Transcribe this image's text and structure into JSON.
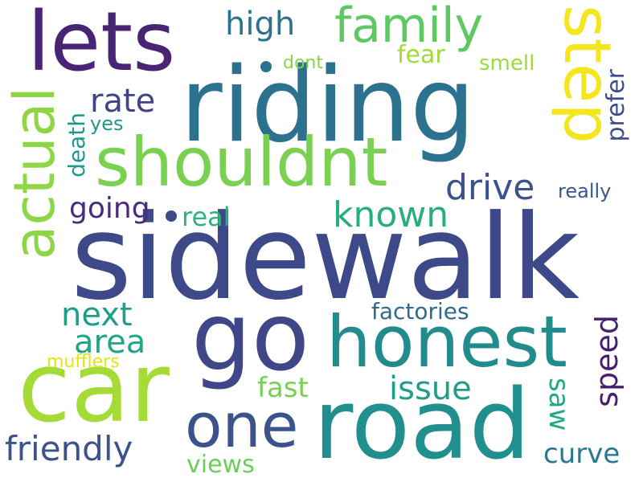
{
  "words": [
    {
      "id": "sidewalk",
      "text": "sidewalk",
      "color": "#3e4989"
    },
    {
      "id": "riding",
      "text": "riding",
      "color": "#2c728e"
    },
    {
      "id": "car",
      "text": "car",
      "color": "#a5db36"
    },
    {
      "id": "road",
      "text": "road",
      "color": "#218f8d"
    },
    {
      "id": "go",
      "text": "go",
      "color": "#3f4788"
    },
    {
      "id": "lets",
      "text": "lets",
      "color": "#482475"
    },
    {
      "id": "honest",
      "text": "honest",
      "color": "#228c8d"
    },
    {
      "id": "shouldnt",
      "text": "shouldnt",
      "color": "#7ad151"
    },
    {
      "id": "step",
      "text": "step",
      "color": "#f4e61e"
    },
    {
      "id": "actual",
      "text": "actual",
      "color": "#8ed645"
    },
    {
      "id": "one",
      "text": "one",
      "color": "#3b528b"
    },
    {
      "id": "family",
      "text": "family",
      "color": "#5ec962"
    },
    {
      "id": "drive",
      "text": "drive",
      "color": "#3b528b"
    },
    {
      "id": "known",
      "text": "known",
      "color": "#27ad81"
    },
    {
      "id": "friendly",
      "text": "friendly",
      "color": "#3b528b"
    },
    {
      "id": "issue",
      "text": "issue",
      "color": "#1f9e89"
    },
    {
      "id": "next",
      "text": "next",
      "color": "#1f9e89"
    },
    {
      "id": "area",
      "text": "area",
      "color": "#21a585"
    },
    {
      "id": "high",
      "text": "high",
      "color": "#2c728e"
    },
    {
      "id": "rate",
      "text": "rate",
      "color": "#414487"
    },
    {
      "id": "going",
      "text": "going",
      "color": "#472d7b"
    },
    {
      "id": "speed",
      "text": "speed",
      "color": "#481f70"
    },
    {
      "id": "curve",
      "text": "curve",
      "color": "#2a788e"
    },
    {
      "id": "fast",
      "text": "fast",
      "color": "#75d054"
    },
    {
      "id": "saw",
      "text": "saw",
      "color": "#22a884"
    },
    {
      "id": "real",
      "text": "real",
      "color": "#2db27d"
    },
    {
      "id": "fear",
      "text": "fear",
      "color": "#a2da37"
    },
    {
      "id": "smell",
      "text": "smell",
      "color": "#9dd93b"
    },
    {
      "id": "prefer",
      "text": "prefer",
      "color": "#3e4c8a"
    },
    {
      "id": "death",
      "text": "death",
      "color": "#1f988b"
    },
    {
      "id": "factories",
      "text": "factories",
      "color": "#31688e"
    },
    {
      "id": "views",
      "text": "views",
      "color": "#6ccd5a"
    },
    {
      "id": "yes",
      "text": "yes",
      "color": "#1f958b"
    },
    {
      "id": "dont",
      "text": "dont",
      "color": "#86d549"
    },
    {
      "id": "really",
      "text": "really",
      "color": "#39568c"
    },
    {
      "id": "mufflers",
      "text": "mufflers",
      "color": "#e2e418"
    }
  ],
  "dots": [
    {
      "id": "dot1",
      "color": "#2c728e"
    },
    {
      "id": "dot2",
      "color": "#3e4989"
    }
  ]
}
